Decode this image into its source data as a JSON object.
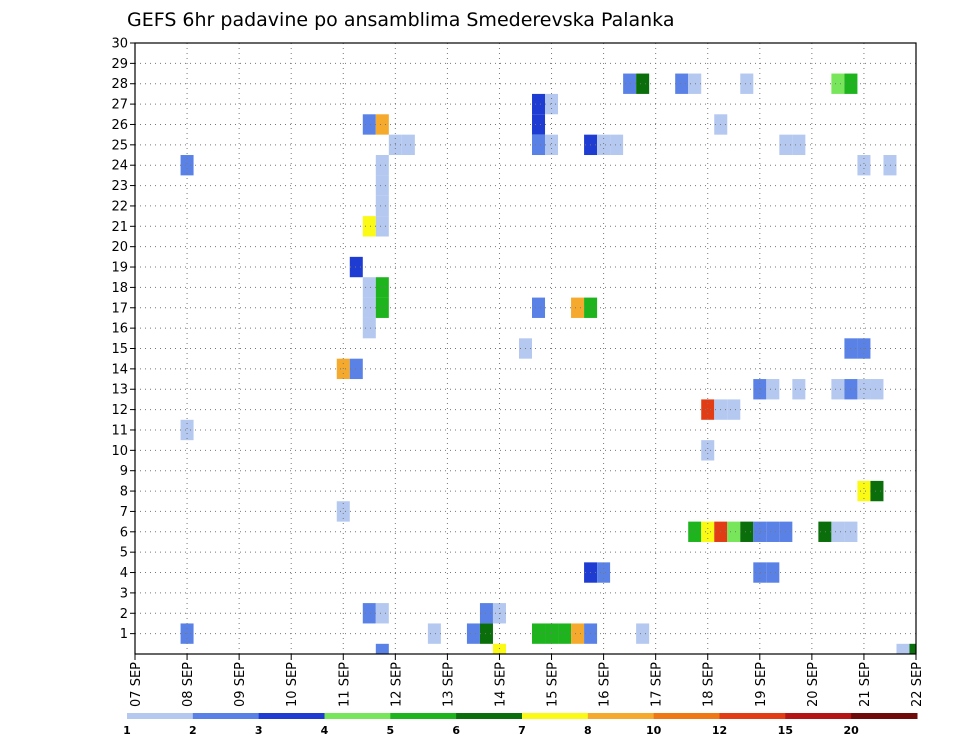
{
  "chart_data": {
    "type": "heatmap",
    "title": "GEFS 6hr padavine po ansamblima Smederevska Palanka",
    "xlabel": "",
    "ylabel": "",
    "x_ticks": [
      "07 SEP",
      "08 SEP",
      "09 SEP",
      "10 SEP",
      "11 SEP",
      "12 SEP",
      "13 SEP",
      "14 SEP",
      "15 SEP",
      "16 SEP",
      "17 SEP",
      "18 SEP",
      "19 SEP",
      "20 SEP",
      "21 SEP",
      "22 SEP"
    ],
    "y_ticks": [
      "1",
      "2",
      "3",
      "4",
      "5",
      "6",
      "7",
      "8",
      "9",
      "10",
      "11",
      "12",
      "13",
      "14",
      "15",
      "16",
      "17",
      "18",
      "19",
      "20",
      "21",
      "22",
      "23",
      "24",
      "25",
      "26",
      "27",
      "28",
      "29",
      "30"
    ],
    "x_range_days": [
      0,
      15
    ],
    "y_range": [
      0,
      30
    ],
    "grid": true,
    "steps_per_day": 4,
    "legend": {
      "position": "bottom",
      "labels": [
        "1",
        "2",
        "3",
        "4",
        "5",
        "6",
        "7",
        "8",
        "10",
        "12",
        "15",
        "20"
      ],
      "colors": [
        "#b4c8f0",
        "#5a82e6",
        "#1e3cd2",
        "#78e65a",
        "#1eb41e",
        "#0a6e0a",
        "#fafa14",
        "#f5aa2d",
        "#f07814",
        "#e13c14",
        "#b41414",
        "#6e0a0a"
      ]
    },
    "cells": [
      {
        "t": "08 SEP 00",
        "m": 24,
        "v": 2
      },
      {
        "t": "08 SEP 00",
        "m": 11,
        "v": 1
      },
      {
        "t": "08 SEP 00",
        "m": 1,
        "v": 2
      },
      {
        "t": "11 SEP 00",
        "m": 7,
        "v": 1
      },
      {
        "t": "11 SEP 00",
        "m": 14,
        "v": 8
      },
      {
        "t": "11 SEP 06",
        "m": 14,
        "v": 2
      },
      {
        "t": "11 SEP 06",
        "m": 19,
        "v": 3
      },
      {
        "t": "11 SEP 12",
        "m": 26,
        "v": 2
      },
      {
        "t": "11 SEP 18",
        "m": 26,
        "v": 8
      },
      {
        "t": "11 SEP 18",
        "m": 24,
        "v": 1
      },
      {
        "t": "11 SEP 18",
        "m": 23,
        "v": 1
      },
      {
        "t": "11 SEP 18",
        "m": 22,
        "v": 1
      },
      {
        "t": "11 SEP 12",
        "m": 21,
        "v": 7
      },
      {
        "t": "11 SEP 18",
        "m": 21,
        "v": 1
      },
      {
        "t": "11 SEP 12",
        "m": 18,
        "v": 1
      },
      {
        "t": "11 SEP 18",
        "m": 18,
        "v": 5
      },
      {
        "t": "11 SEP 12",
        "m": 17,
        "v": 1
      },
      {
        "t": "11 SEP 18",
        "m": 17,
        "v": 5
      },
      {
        "t": "11 SEP 12",
        "m": 16,
        "v": 1
      },
      {
        "t": "11 SEP 12",
        "m": 2,
        "v": 2
      },
      {
        "t": "11 SEP 18",
        "m": 2,
        "v": 1
      },
      {
        "t": "12 SEP 00",
        "m": 25,
        "v": 1
      },
      {
        "t": "12 SEP 06",
        "m": 25,
        "v": 1
      },
      {
        "t": "12 SEP 18",
        "m": 1,
        "v": 1
      },
      {
        "t": "13 SEP 12",
        "m": 1,
        "v": 2
      },
      {
        "t": "13 SEP 18",
        "m": 1,
        "v": 6
      },
      {
        "t": "13 SEP 18",
        "m": 2,
        "v": 2
      },
      {
        "t": "14 SEP 00",
        "m": 2,
        "v": 1
      },
      {
        "t": "14 SEP 12",
        "m": 15,
        "v": 1
      },
      {
        "t": "14 SEP 18",
        "m": 1,
        "v": 5
      },
      {
        "t": "15 SEP 00",
        "m": 1,
        "v": 5
      },
      {
        "t": "15 SEP 06",
        "m": 1,
        "v": 5
      },
      {
        "t": "15 SEP 12",
        "m": 1,
        "v": 8
      },
      {
        "t": "14 SEP 18",
        "m": 27,
        "v": 3
      },
      {
        "t": "15 SEP 00",
        "m": 27,
        "v": 1
      },
      {
        "t": "14 SEP 18",
        "m": 26,
        "v": 3
      },
      {
        "t": "14 SEP 18",
        "m": 25,
        "v": 2
      },
      {
        "t": "15 SEP 00",
        "m": 25,
        "v": 1
      },
      {
        "t": "14 SEP 18",
        "m": 17,
        "v": 2
      },
      {
        "t": "15 SEP 12",
        "m": 17,
        "v": 8
      },
      {
        "t": "15 SEP 18",
        "m": 17,
        "v": 5
      },
      {
        "t": "15 SEP 18",
        "m": 25,
        "v": 3
      },
      {
        "t": "16 SEP 00",
        "m": 25,
        "v": 1
      },
      {
        "t": "16 SEP 06",
        "m": 25,
        "v": 1
      },
      {
        "t": "15 SEP 18",
        "m": 4,
        "v": 3
      },
      {
        "t": "16 SEP 00",
        "m": 4,
        "v": 2
      },
      {
        "t": "15 SEP 18",
        "m": 1,
        "v": 2
      },
      {
        "t": "16 SEP 12",
        "m": 28,
        "v": 2
      },
      {
        "t": "16 SEP 18",
        "m": 28,
        "v": 6
      },
      {
        "t": "16 SEP 18",
        "m": 1,
        "v": 1
      },
      {
        "t": "17 SEP 12",
        "m": 28,
        "v": 2
      },
      {
        "t": "17 SEP 18",
        "m": 28,
        "v": 1
      },
      {
        "t": "17 SEP 18",
        "m": 6,
        "v": 5
      },
      {
        "t": "18 SEP 00",
        "m": 6,
        "v": 7
      },
      {
        "t": "18 SEP 06",
        "m": 6,
        "v": 10
      },
      {
        "t": "18 SEP 12",
        "m": 6,
        "v": 4
      },
      {
        "t": "18 SEP 18",
        "m": 6,
        "v": 6
      },
      {
        "t": "19 SEP 00",
        "m": 6,
        "v": 2
      },
      {
        "t": "19 SEP 06",
        "m": 6,
        "v": 2
      },
      {
        "t": "19 SEP 12",
        "m": 6,
        "v": 2
      },
      {
        "t": "18 SEP 00",
        "m": 12,
        "v": 10
      },
      {
        "t": "18 SEP 06",
        "m": 12,
        "v": 1
      },
      {
        "t": "18 SEP 12",
        "m": 12,
        "v": 1
      },
      {
        "t": "18 SEP 00",
        "m": 10,
        "v": 1
      },
      {
        "t": "18 SEP 06",
        "m": 26,
        "v": 1
      },
      {
        "t": "18 SEP 18",
        "m": 28,
        "v": 1
      },
      {
        "t": "19 SEP 00",
        "m": 13,
        "v": 2
      },
      {
        "t": "19 SEP 06",
        "m": 13,
        "v": 1
      },
      {
        "t": "19 SEP 00",
        "m": 4,
        "v": 2
      },
      {
        "t": "19 SEP 06",
        "m": 4,
        "v": 2
      },
      {
        "t": "19 SEP 12",
        "m": 25,
        "v": 1
      },
      {
        "t": "19 SEP 18",
        "m": 25,
        "v": 1
      },
      {
        "t": "19 SEP 18",
        "m": 13,
        "v": 1
      },
      {
        "t": "20 SEP 06",
        "m": 6,
        "v": 6
      },
      {
        "t": "20 SEP 12",
        "m": 6,
        "v": 1
      },
      {
        "t": "20 SEP 18",
        "m": 6,
        "v": 1
      },
      {
        "t": "20 SEP 12",
        "m": 28,
        "v": 4
      },
      {
        "t": "20 SEP 18",
        "m": 28,
        "v": 5
      },
      {
        "t": "20 SEP 12",
        "m": 13,
        "v": 1
      },
      {
        "t": "20 SEP 18",
        "m": 13,
        "v": 2
      },
      {
        "t": "21 SEP 00",
        "m": 13,
        "v": 1
      },
      {
        "t": "21 SEP 06",
        "m": 13,
        "v": 1
      },
      {
        "t": "20 SEP 18",
        "m": 15,
        "v": 2
      },
      {
        "t": "21 SEP 00",
        "m": 15,
        "v": 2
      },
      {
        "t": "21 SEP 00",
        "m": 24,
        "v": 1
      },
      {
        "t": "21 SEP 12",
        "m": 24,
        "v": 1
      },
      {
        "t": "21 SEP 00",
        "m": 8,
        "v": 7
      },
      {
        "t": "21 SEP 06",
        "m": 8,
        "v": 6
      },
      {
        "t": "21 SEP 18",
        "m": 0,
        "v": 1
      },
      {
        "t": "11 SEP 18",
        "m": 0,
        "v": 2
      },
      {
        "t": "14 SEP 00",
        "m": 0,
        "v": 7
      },
      {
        "t": "22 SEP 00",
        "m": 0,
        "v": 6
      }
    ]
  }
}
